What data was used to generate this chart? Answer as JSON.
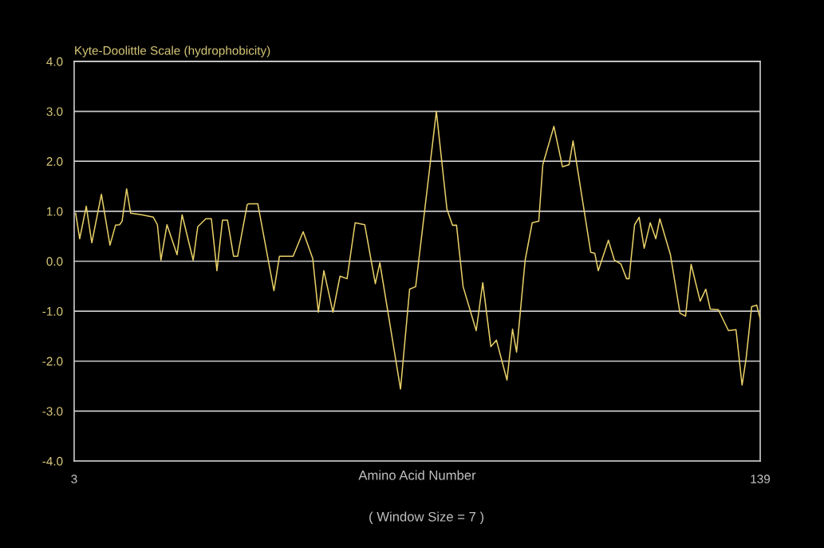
{
  "chart_data": {
    "type": "line",
    "title": "Kyte-Doolittle Scale (hydrophobicity)",
    "xlabel": "Amino Acid Number",
    "annotations": [
      "( Window Size = 7 )"
    ],
    "xlim": [
      3,
      139
    ],
    "xticks": [
      3,
      139
    ],
    "ylim": [
      -4,
      4
    ],
    "yticks": [
      {
        "value": -4,
        "label": "-4.0"
      },
      {
        "value": -3,
        "label": "-3.0"
      },
      {
        "value": -2,
        "label": "-2.0"
      },
      {
        "value": -1,
        "label": "-1.0"
      },
      {
        "value": 0,
        "label": "0.0"
      },
      {
        "value": 1,
        "label": "1.0"
      },
      {
        "value": 2,
        "label": "2.0"
      },
      {
        "value": 3,
        "label": "3.0"
      },
      {
        "value": 4,
        "label": "4.0"
      }
    ],
    "grid": "y",
    "marker": "none",
    "line_style": "solid",
    "series": [
      {
        "color": "#e8d068",
        "x": [
          3.3,
          4.1,
          5.4,
          6.5,
          8.4,
          10.1,
          11.2,
          12,
          12.5,
          13.4,
          14.2,
          16.4,
          18.7,
          19.5,
          20.2,
          21.4,
          23.4,
          24.4,
          26.6,
          27.5,
          29.1,
          30.2,
          31.3,
          32.4,
          33.4,
          34.6,
          35.4,
          37.3,
          37.6,
          39.4,
          42.6,
          43.7,
          46.4,
          48.4,
          50.3,
          51.4,
          52.5,
          54.3,
          55.7,
          57.1,
          58.7,
          60.6,
          62.7,
          63.6,
          67.7,
          69.5,
          70.7,
          74.8,
          76.9,
          78,
          78.8,
          80.1,
          82.7,
          84,
          85.6,
          86.7,
          88.8,
          89.9,
          90.7,
          92.4,
          93.8,
          95.1,
          95.9,
          98.1,
          99.8,
          101.1,
          101.9,
          103.8,
          105.4,
          106.2,
          106.9,
          108.9,
          110.1,
          111.4,
          112.5,
          113,
          114.1,
          115,
          116,
          117.2,
          118.3,
          119.1,
          121.2,
          123.1,
          124.2,
          125.3,
          127.1,
          128.2,
          129.1,
          130.7,
          132.7,
          134.2,
          135.4,
          136.2,
          137.3,
          138.3,
          139
        ],
        "values": [
          0.96,
          0.45,
          1.1,
          0.37,
          1.34,
          0.32,
          0.72,
          0.73,
          0.8,
          1.45,
          0.96,
          0.93,
          0.88,
          0.73,
          0.02,
          0.73,
          0.13,
          0.93,
          0.02,
          0.69,
          0.85,
          0.85,
          -0.19,
          0.82,
          0.82,
          0.1,
          0.1,
          1.13,
          1.15,
          1.15,
          -0.59,
          0.1,
          0.1,
          0.59,
          0.05,
          -1.02,
          -0.19,
          -1.02,
          -0.3,
          -0.35,
          0.77,
          0.73,
          -0.45,
          -0.03,
          -2.56,
          -0.56,
          -0.51,
          3.0,
          1.04,
          0.72,
          0.72,
          -0.51,
          -1.39,
          -0.43,
          -1.71,
          -1.58,
          -2.38,
          -1.36,
          -1.82,
          0.02,
          0.77,
          0.8,
          1.93,
          2.7,
          1.89,
          1.93,
          2.41,
          1.2,
          0.18,
          0.16,
          -0.19,
          0.42,
          0.02,
          -0.06,
          -0.35,
          -0.35,
          0.73,
          0.88,
          0.26,
          0.77,
          0.45,
          0.85,
          0.13,
          -1.04,
          -1.1,
          -0.06,
          -0.8,
          -0.56,
          -0.96,
          -0.97,
          -1.39,
          -1.37,
          -2.48,
          -1.95,
          -0.91,
          -0.88,
          -1.15
        ]
      }
    ]
  }
}
